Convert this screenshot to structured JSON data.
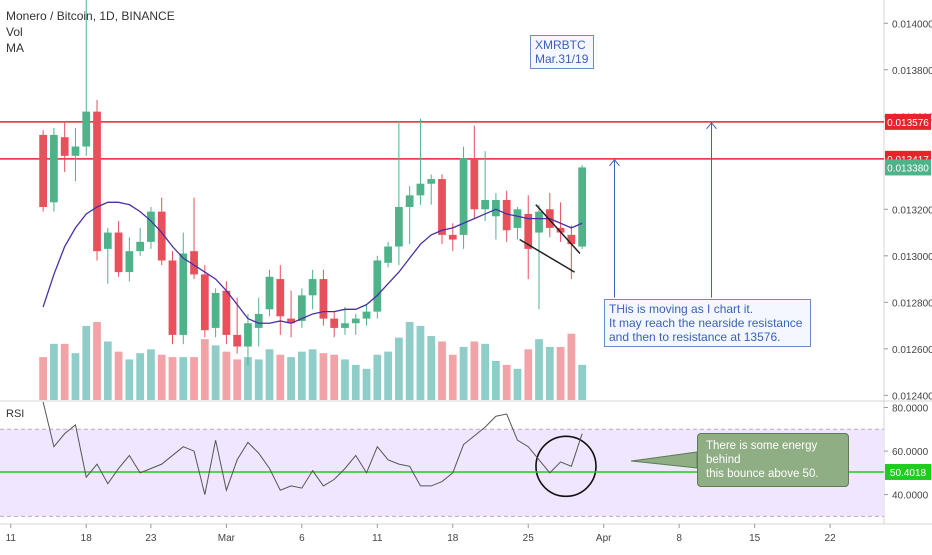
{
  "header": {
    "symbol_line": "Monero / Bitcoin, 1D, BINANCE",
    "vol_label": "Vol",
    "ma_label": "MA"
  },
  "annotations": {
    "title_box": [
      "XMRBTC",
      "Mar.31/19"
    ],
    "note_box": [
      "THis is moving as I chart it.",
      "It may reach the nearside resistance",
      "and then to resistance at 13576."
    ],
    "rsi_note": [
      "There is some energy behind",
      "this bounce above 50."
    ]
  },
  "colors": {
    "up": "#4fb38a",
    "down": "#e8505b",
    "vol_up": "#8ecdc8",
    "vol_down": "#f2a3a8",
    "ma": "#4b2ea3",
    "resistance": "#e8232b",
    "rsi_line": "#555555",
    "rsi_band": "#f1e6ff",
    "rsi_50_line": "#1fcc1f",
    "arrow": "#3a62b8"
  },
  "chart_data": [
    {
      "type": "candlestick",
      "title": "Monero / Bitcoin, 1D, BINANCE",
      "y_axis": {
        "ticks": [
          "0.014000",
          "0.013800",
          "0.013600",
          "0.013200",
          "0.013000",
          "0.012800",
          "0.012600",
          "0.012400"
        ],
        "tick_values": [
          0.014,
          0.0138,
          0.0136,
          0.0132,
          0.013,
          0.0128,
          0.0126,
          0.0124
        ],
        "range": [
          0.01238,
          0.0141
        ]
      },
      "x_axis": {
        "ticks": [
          "11",
          "18",
          "23",
          "Mar",
          "6",
          "11",
          "18",
          "25",
          "Apr",
          "8",
          "15",
          "22"
        ],
        "tick_index": [
          -3,
          4,
          10,
          17,
          24,
          31,
          38,
          45,
          52,
          59,
          66,
          73
        ],
        "index_range": [
          -4,
          78
        ]
      },
      "horizontal_lines": [
        {
          "label": "0.013576",
          "value": 0.013576
        },
        {
          "label": "0.013417",
          "value": 0.013417
        }
      ],
      "last_price_label": "0.013380",
      "candles": [
        {
          "o": 0.01352,
          "h": 0.01354,
          "l": 0.01319,
          "c": 0.01321
        },
        {
          "o": 0.01323,
          "h": 0.01355,
          "l": 0.01319,
          "c": 0.01352
        },
        {
          "o": 0.01351,
          "h": 0.01358,
          "l": 0.01336,
          "c": 0.01343
        },
        {
          "o": 0.01343,
          "h": 0.01355,
          "l": 0.01332,
          "c": 0.01347
        },
        {
          "o": 0.01347,
          "h": 0.01412,
          "l": 0.01343,
          "c": 0.01362
        },
        {
          "o": 0.01362,
          "h": 0.01367,
          "l": 0.01298,
          "c": 0.01302
        },
        {
          "o": 0.01303,
          "h": 0.01312,
          "l": 0.01288,
          "c": 0.0131
        },
        {
          "o": 0.0131,
          "h": 0.01315,
          "l": 0.01291,
          "c": 0.01293
        },
        {
          "o": 0.01293,
          "h": 0.01308,
          "l": 0.01289,
          "c": 0.01302
        },
        {
          "o": 0.01302,
          "h": 0.01312,
          "l": 0.013,
          "c": 0.01306
        },
        {
          "o": 0.01306,
          "h": 0.01321,
          "l": 0.01303,
          "c": 0.01319
        },
        {
          "o": 0.01319,
          "h": 0.01325,
          "l": 0.01296,
          "c": 0.01298
        },
        {
          "o": 0.01298,
          "h": 0.01302,
          "l": 0.01262,
          "c": 0.01266
        },
        {
          "o": 0.01266,
          "h": 0.0131,
          "l": 0.01262,
          "c": 0.01301
        },
        {
          "o": 0.01302,
          "h": 0.01325,
          "l": 0.0129,
          "c": 0.01292
        },
        {
          "o": 0.01292,
          "h": 0.01296,
          "l": 0.01265,
          "c": 0.01268
        },
        {
          "o": 0.01269,
          "h": 0.01286,
          "l": 0.01265,
          "c": 0.01284
        },
        {
          "o": 0.01285,
          "h": 0.01289,
          "l": 0.01262,
          "c": 0.01266
        },
        {
          "o": 0.01266,
          "h": 0.01282,
          "l": 0.01258,
          "c": 0.01261
        },
        {
          "o": 0.01261,
          "h": 0.01275,
          "l": 0.01253,
          "c": 0.01271
        },
        {
          "o": 0.01269,
          "h": 0.01282,
          "l": 0.01261,
          "c": 0.01275
        },
        {
          "o": 0.01277,
          "h": 0.01294,
          "l": 0.01274,
          "c": 0.01291
        },
        {
          "o": 0.0129,
          "h": 0.01296,
          "l": 0.01266,
          "c": 0.01274
        },
        {
          "o": 0.01273,
          "h": 0.01285,
          "l": 0.01265,
          "c": 0.01271
        },
        {
          "o": 0.01272,
          "h": 0.01286,
          "l": 0.01269,
          "c": 0.01283
        },
        {
          "o": 0.01283,
          "h": 0.01294,
          "l": 0.01277,
          "c": 0.0129
        },
        {
          "o": 0.0129,
          "h": 0.01294,
          "l": 0.0127,
          "c": 0.01273
        },
        {
          "o": 0.01273,
          "h": 0.01276,
          "l": 0.01265,
          "c": 0.01269
        },
        {
          "o": 0.01269,
          "h": 0.01278,
          "l": 0.01266,
          "c": 0.01271
        },
        {
          "o": 0.01271,
          "h": 0.01275,
          "l": 0.01266,
          "c": 0.01273
        },
        {
          "o": 0.01273,
          "h": 0.01279,
          "l": 0.0127,
          "c": 0.01276
        },
        {
          "o": 0.01276,
          "h": 0.013,
          "l": 0.01273,
          "c": 0.01298
        },
        {
          "o": 0.01297,
          "h": 0.01306,
          "l": 0.01295,
          "c": 0.01304
        },
        {
          "o": 0.01304,
          "h": 0.01358,
          "l": 0.01296,
          "c": 0.01321
        },
        {
          "o": 0.01321,
          "h": 0.0133,
          "l": 0.01305,
          "c": 0.01326
        },
        {
          "o": 0.01326,
          "h": 0.01359,
          "l": 0.01322,
          "c": 0.01331
        },
        {
          "o": 0.01331,
          "h": 0.01335,
          "l": 0.01322,
          "c": 0.01333
        },
        {
          "o": 0.01333,
          "h": 0.01335,
          "l": 0.01305,
          "c": 0.01309
        },
        {
          "o": 0.01309,
          "h": 0.01314,
          "l": 0.01302,
          "c": 0.01307
        },
        {
          "o": 0.01309,
          "h": 0.01347,
          "l": 0.01303,
          "c": 0.01342
        },
        {
          "o": 0.01342,
          "h": 0.01356,
          "l": 0.01316,
          "c": 0.0132
        },
        {
          "o": 0.0132,
          "h": 0.01345,
          "l": 0.01315,
          "c": 0.01324
        },
        {
          "o": 0.01317,
          "h": 0.01327,
          "l": 0.01307,
          "c": 0.01324
        },
        {
          "o": 0.01324,
          "h": 0.01328,
          "l": 0.01306,
          "c": 0.01311
        },
        {
          "o": 0.01312,
          "h": 0.01321,
          "l": 0.01307,
          "c": 0.0132
        },
        {
          "o": 0.01318,
          "h": 0.01326,
          "l": 0.0129,
          "c": 0.01303
        },
        {
          "o": 0.0131,
          "h": 0.01322,
          "l": 0.01277,
          "c": 0.01319
        },
        {
          "o": 0.0132,
          "h": 0.01327,
          "l": 0.01308,
          "c": 0.01312
        },
        {
          "o": 0.01312,
          "h": 0.01323,
          "l": 0.01306,
          "c": 0.0131
        },
        {
          "o": 0.01309,
          "h": 0.01313,
          "l": 0.0129,
          "c": 0.01305
        },
        {
          "o": 0.01304,
          "h": 0.01339,
          "l": 0.01303,
          "c": 0.01338
        }
      ],
      "volume": [
        {
          "v": 0.55,
          "up": false
        },
        {
          "v": 0.72,
          "up": true
        },
        {
          "v": 0.72,
          "up": false
        },
        {
          "v": 0.6,
          "up": true
        },
        {
          "v": 0.95,
          "up": true
        },
        {
          "v": 1.0,
          "up": false
        },
        {
          "v": 0.75,
          "up": true
        },
        {
          "v": 0.62,
          "up": false
        },
        {
          "v": 0.52,
          "up": true
        },
        {
          "v": 0.6,
          "up": true
        },
        {
          "v": 0.65,
          "up": true
        },
        {
          "v": 0.58,
          "up": false
        },
        {
          "v": 0.55,
          "up": false
        },
        {
          "v": 0.55,
          "up": true
        },
        {
          "v": 0.55,
          "up": false
        },
        {
          "v": 0.78,
          "up": false
        },
        {
          "v": 0.7,
          "up": true
        },
        {
          "v": 0.62,
          "up": false
        },
        {
          "v": 0.52,
          "up": false
        },
        {
          "v": 0.55,
          "up": true
        },
        {
          "v": 0.52,
          "up": true
        },
        {
          "v": 0.65,
          "up": true
        },
        {
          "v": 0.58,
          "up": false
        },
        {
          "v": 0.55,
          "up": true
        },
        {
          "v": 0.62,
          "up": true
        },
        {
          "v": 0.65,
          "up": true
        },
        {
          "v": 0.6,
          "up": false
        },
        {
          "v": 0.58,
          "up": false
        },
        {
          "v": 0.52,
          "up": true
        },
        {
          "v": 0.45,
          "up": true
        },
        {
          "v": 0.4,
          "up": true
        },
        {
          "v": 0.58,
          "up": true
        },
        {
          "v": 0.62,
          "up": true
        },
        {
          "v": 0.8,
          "up": true
        },
        {
          "v": 1.0,
          "up": true
        },
        {
          "v": 0.95,
          "up": true
        },
        {
          "v": 0.82,
          "up": true
        },
        {
          "v": 0.75,
          "up": false
        },
        {
          "v": 0.58,
          "up": false
        },
        {
          "v": 0.68,
          "up": true
        },
        {
          "v": 0.75,
          "up": false
        },
        {
          "v": 0.72,
          "up": true
        },
        {
          "v": 0.5,
          "up": true
        },
        {
          "v": 0.45,
          "up": false
        },
        {
          "v": 0.4,
          "up": true
        },
        {
          "v": 0.65,
          "up": false
        },
        {
          "v": 0.78,
          "up": true
        },
        {
          "v": 0.68,
          "up": true
        },
        {
          "v": 0.68,
          "up": false
        },
        {
          "v": 0.85,
          "up": false
        },
        {
          "v": 0.45,
          "up": true
        }
      ],
      "ma": [
        0.01278,
        0.01292,
        0.01304,
        0.01312,
        0.01318,
        0.01321,
        0.01323,
        0.01323,
        0.01322,
        0.01319,
        0.01315,
        0.0131,
        0.01304,
        0.01299,
        0.01296,
        0.01293,
        0.0129,
        0.01285,
        0.01279,
        0.01273,
        0.01271,
        0.01271,
        0.01272,
        0.01271,
        0.01273,
        0.01275,
        0.01276,
        0.01276,
        0.01277,
        0.01277,
        0.01279,
        0.01283,
        0.01288,
        0.01293,
        0.01299,
        0.01305,
        0.01309,
        0.01311,
        0.01312,
        0.01314,
        0.01316,
        0.01318,
        0.0132,
        0.01318,
        0.01317,
        0.01316,
        0.01316,
        0.01316,
        0.01314,
        0.01312,
        0.01314
      ]
    },
    {
      "type": "line",
      "title": "RSI",
      "y_axis": {
        "ticks": [
          "80.0000",
          "60.0000",
          "40.0000"
        ],
        "tick_values": [
          80,
          60,
          40
        ],
        "range": [
          26.5,
          83
        ]
      },
      "band": [
        30,
        70
      ],
      "reference_line": {
        "label": "50.4018",
        "value": 50.4018
      },
      "values": [
        84,
        62,
        68,
        72,
        48,
        54,
        45,
        52,
        58,
        50,
        52,
        54,
        58,
        62,
        60,
        40,
        65,
        42,
        56,
        64,
        59,
        52,
        42,
        44,
        43,
        51,
        44,
        47,
        52,
        58,
        50,
        62,
        56,
        54,
        53,
        44,
        44,
        46,
        50,
        63,
        67,
        71,
        76,
        77,
        65,
        62,
        56,
        50,
        55,
        53,
        68
      ]
    }
  ]
}
